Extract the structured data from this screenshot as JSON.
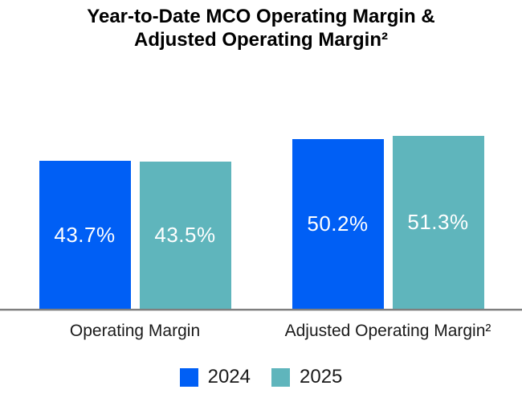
{
  "chart_data": {
    "type": "bar",
    "title": "Year-to-Date MCO Operating Margin & Adjusted Operating Margin²",
    "title_lines": [
      "Year-to-Date MCO Operating Margin &",
      "Adjusted Operating Margin²"
    ],
    "categories": [
      "Operating Margin",
      "Adjusted Operating Margin²"
    ],
    "series": [
      {
        "name": "2024",
        "color": "#005FF5",
        "values": [
          43.7,
          50.2
        ],
        "labels": [
          "43.7%",
          "50.2%"
        ]
      },
      {
        "name": "2025",
        "color": "#5FB5BC",
        "values": [
          43.5,
          51.3
        ],
        "labels": [
          "43.5%",
          "51.3%"
        ]
      }
    ],
    "ylim": [
      0,
      69.5
    ],
    "grid": false,
    "legend_position": "bottom",
    "colors": {
      "bar_label": "#FFFFFF",
      "axis_line": "#7F7F7F",
      "title_text": "#000000",
      "category_text": "#1A1A1A"
    }
  }
}
